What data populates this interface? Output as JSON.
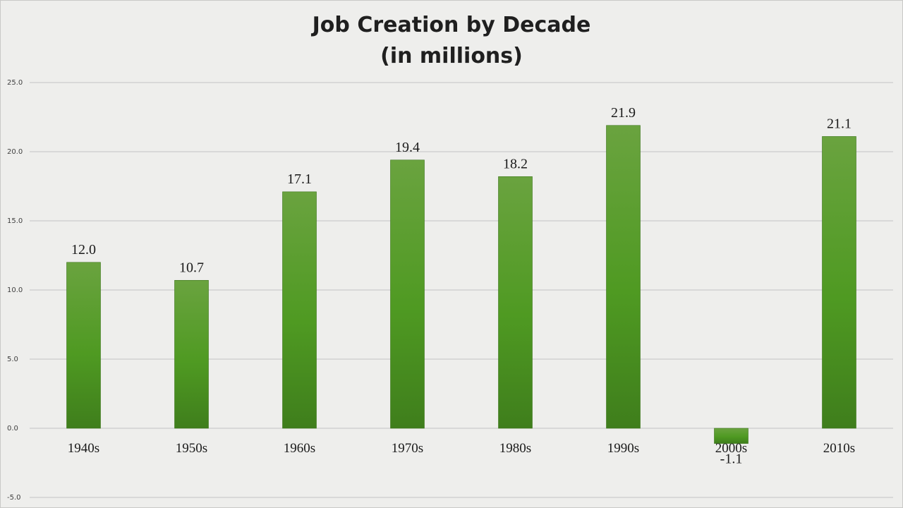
{
  "chart_data": {
    "type": "bar",
    "title": "Job Creation by Decade",
    "subtitle": "(in millions)",
    "categories": [
      "1940s",
      "1950s",
      "1960s",
      "1970s",
      "1980s",
      "1990s",
      "2000s",
      "2010s"
    ],
    "values": [
      12.0,
      10.7,
      17.1,
      19.4,
      18.2,
      21.9,
      -1.1,
      21.1
    ],
    "data_labels": [
      "12.0",
      "10.7",
      "17.1",
      "19.4",
      "18.2",
      "21.9",
      "-1.1",
      "21.1"
    ],
    "y_ticks": [
      "25.0",
      "20.0",
      "15.0",
      "10.0",
      "5.0",
      "0.0",
      "-5.0"
    ],
    "ylim": [
      -5,
      25
    ],
    "grid": true,
    "legend": "none",
    "colors": {
      "bar_top": "#6aa33f",
      "bar_bottom": "#3f7e1c",
      "grid": "#c3c3c3"
    }
  }
}
